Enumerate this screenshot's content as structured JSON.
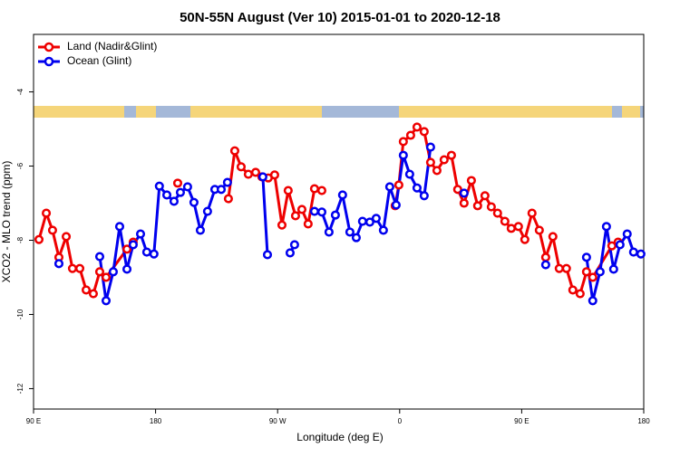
{
  "chart_data": {
    "type": "line",
    "title": "50N-55N August (Ver 10)   2015-01-01 to 2020-12-18",
    "x_label": "Longitude (deg E)",
    "y_label": "XCO2 - MLO trend (ppm)",
    "xlim": [
      90,
      540
    ],
    "xticks": [
      {
        "value": 90,
        "label": "90 E"
      },
      180,
      {
        "value": 270,
        "label": "90 W"
      },
      {
        "value": 360,
        "label": "0"
      },
      {
        "value": 450,
        "label": "90 E"
      },
      {
        "value": 540,
        "label": "180"
      }
    ],
    "ylim": [
      -12.55,
      -2.45
    ],
    "yticks": [
      -4,
      -6,
      -8,
      -10,
      -12
    ],
    "legend": "upper left",
    "series": [
      {
        "name": "Land (Nadir&Glint)",
        "color": "#ee0000",
        "x": [
          94.0,
          99.4,
          104.0,
          108.7,
          114.1,
          118.7,
          124.1,
          128.8,
          134.1,
          138.8,
          143.5,
          158.9,
          163.5,
          null,
          196.3,
          null,
          233.7,
          238.4,
          243.1,
          248.4,
          253.8,
          258.4,
          263.1,
          267.8,
          273.2,
          277.8,
          283.2,
          287.9,
          292.5,
          297.2,
          302.6,
          null,
          356.7,
          359.4,
          362.7,
          368.1,
          372.8,
          378.1,
          382.8,
          387.5,
          392.8,
          398.2,
          402.8,
          407.5,
          412.9,
          417.5,
          422.9,
          427.6,
          432.2,
          437.6,
          442.3,
          447.6,
          452.3,
          457.6,
          463.0,
          467.7,
          473.0,
          477.7,
          483.0,
          487.7,
          493.1,
          497.8,
          502.4,
          516.5,
          521.1
        ],
        "values": [
          -7.98,
          -7.27,
          -7.73,
          -8.46,
          -7.9,
          -8.76,
          -8.76,
          -9.34,
          -9.44,
          -8.85,
          -9.0,
          -8.24,
          -8.05,
          null,
          -6.46,
          null,
          -6.88,
          -5.59,
          -6.02,
          -6.22,
          -6.17,
          -6.29,
          -6.32,
          -6.24,
          -7.59,
          -6.66,
          -7.34,
          -7.17,
          -7.56,
          -6.61,
          -6.66,
          null,
          -7.07,
          -6.51,
          -5.34,
          -5.17,
          -4.95,
          -5.07,
          -5.9,
          -6.12,
          -5.83,
          -5.71,
          -6.63,
          -7.0,
          -6.39,
          -7.07,
          -6.8,
          -7.1,
          -7.27,
          -7.49,
          -7.68,
          -7.63,
          -7.98,
          -7.27,
          -7.73,
          -8.46,
          -7.9,
          -8.76,
          -8.76,
          -9.34,
          -9.44,
          -8.85,
          -9.0,
          -8.15,
          -8.05
        ]
      },
      {
        "name": "Ocean (Glint)",
        "color": "#0000ee",
        "x": [
          108.7,
          null,
          138.8,
          143.5,
          148.8,
          153.5,
          158.9,
          163.5,
          168.9,
          173.5,
          178.8,
          182.8,
          188.3,
          193.6,
          198.3,
          203.6,
          208.3,
          213.0,
          218.3,
          223.7,
          228.4,
          233.0,
          null,
          259.1,
          262.5,
          null,
          279.2,
          282.5,
          null,
          297.2,
          302.6,
          307.9,
          312.6,
          317.9,
          323.3,
          328.0,
          332.6,
          338.0,
          342.7,
          348.0,
          352.7,
          357.4,
          362.7,
          367.4,
          372.8,
          378.1,
          382.8,
          null,
          407.5,
          null,
          467.7,
          null,
          497.8,
          502.4,
          507.8,
          512.5,
          517.8,
          522.5,
          527.8,
          532.5,
          537.9
        ],
        "values": [
          -8.63,
          null,
          -8.44,
          -9.63,
          -8.85,
          -7.63,
          -8.78,
          -8.12,
          -7.83,
          -8.32,
          -8.37,
          -6.54,
          -6.78,
          -6.95,
          -6.71,
          -6.56,
          -6.98,
          -7.73,
          -7.22,
          -6.63,
          -6.63,
          -6.44,
          null,
          -6.29,
          -8.39,
          null,
          -8.34,
          -8.12,
          null,
          -7.22,
          -7.24,
          -7.78,
          -7.32,
          -6.78,
          -7.78,
          -7.93,
          -7.49,
          -7.51,
          -7.41,
          -7.73,
          -6.56,
          -7.05,
          -5.71,
          -6.22,
          -6.59,
          -6.8,
          -5.49,
          null,
          -6.73,
          null,
          -8.66,
          null,
          -8.46,
          -9.63,
          -8.85,
          -7.63,
          -8.78,
          -8.12,
          -7.83,
          -8.32,
          -8.37
        ]
      }
    ]
  }
}
